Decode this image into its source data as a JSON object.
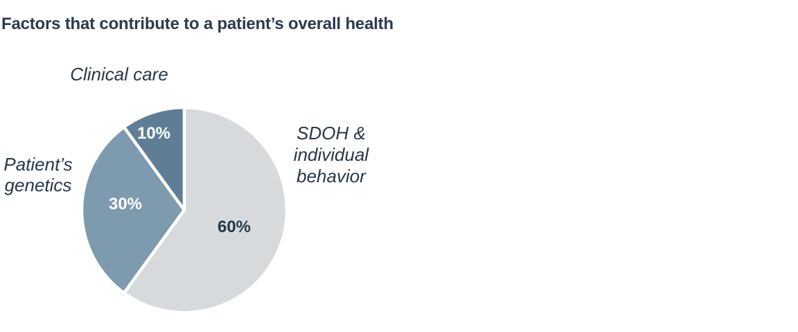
{
  "title": "Factors that contribute to a patient’s overall health",
  "colors": {
    "dark_text": "#2b3b4e",
    "background": "#ffffff",
    "slice_separator": "#ffffff"
  },
  "chart_data": {
    "type": "pie",
    "title": "Factors that contribute to a patient’s overall health",
    "categories": [
      "SDOH & individual behavior",
      "Patient’s genetics",
      "Clinical care"
    ],
    "values": [
      60,
      30,
      10
    ],
    "colors": [
      "#d7dadc",
      "#7d9aaf",
      "#5f7e96"
    ],
    "start_angle_deg": 0,
    "direction": "clockwise",
    "grid": false,
    "legend_position": "none",
    "labels": {
      "sdoh": {
        "text": "SDOH &\nindividual\nbehavior",
        "pct": "60%",
        "pct_color": "#26384a"
      },
      "genetics": {
        "text": "Patient’s\ngenetics",
        "pct": "30%",
        "pct_color": "#ffffff"
      },
      "clinical": {
        "text": "Clinical care",
        "pct": "10%",
        "pct_color": "#ffffff"
      }
    },
    "label_text_color": "#263748"
  }
}
